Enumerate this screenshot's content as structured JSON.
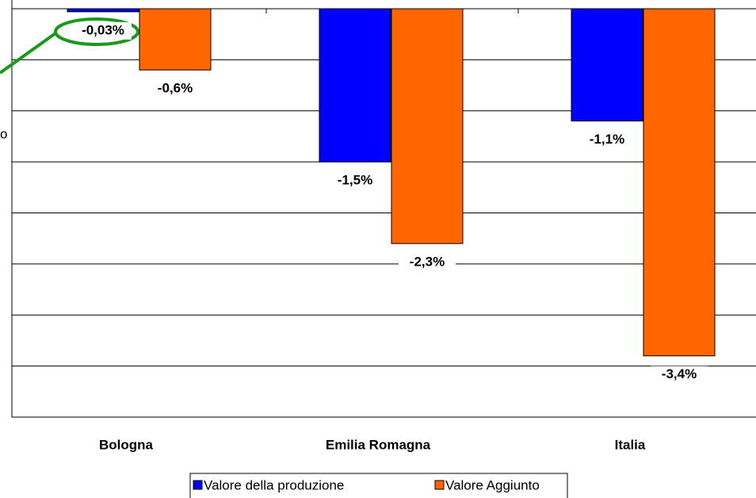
{
  "chart_data": {
    "type": "bar",
    "y_axis_label": "o",
    "categories": [
      "Bologna",
      "Emilia Romagna",
      "Italia"
    ],
    "series": [
      {
        "name": "Valore della produzione",
        "color": "#0000ff",
        "values": [
          -0.03,
          -1.5,
          -1.1
        ],
        "value_labels": [
          "-0,03%",
          "-1,5%",
          "-1,1%"
        ]
      },
      {
        "name": "Valore Aggiunto",
        "color": "#ff6600",
        "values": [
          -0.6,
          -2.3,
          -3.4
        ],
        "value_labels": [
          "-0,6%",
          "-2,3%",
          "-3,4%"
        ]
      }
    ],
    "ylim": [
      -4,
      0
    ],
    "yticks": [
      -4,
      -3.5,
      -3,
      -2.5,
      -2,
      -1.5,
      -1,
      -0.5,
      0
    ],
    "grid": true,
    "legend": "bottom"
  }
}
